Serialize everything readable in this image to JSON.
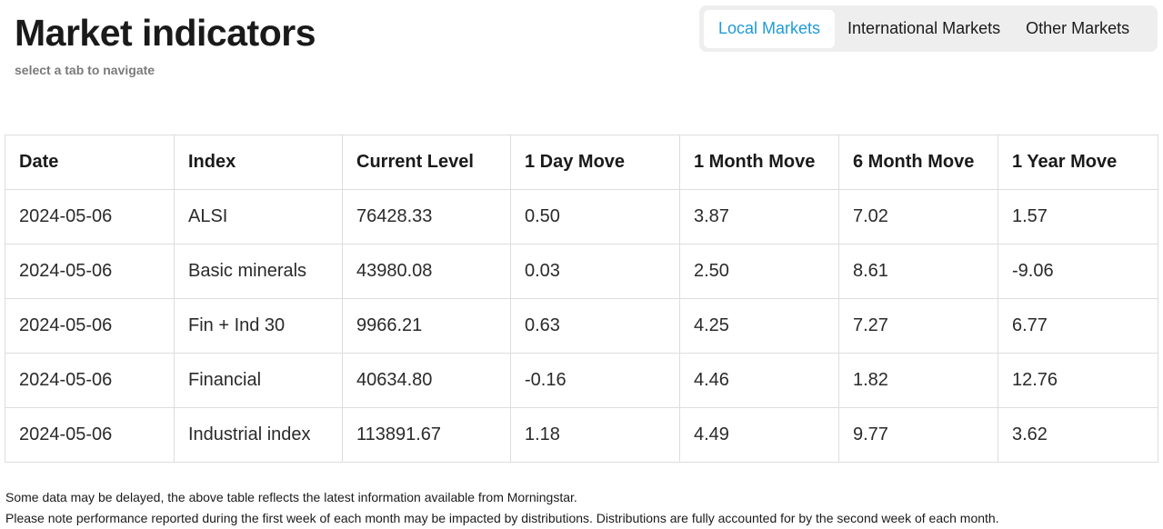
{
  "header": {
    "title": "Market indicators",
    "subtitle": "select a tab to navigate"
  },
  "tabs": [
    {
      "label": "Local Markets",
      "active": true
    },
    {
      "label": "International Markets",
      "active": false
    },
    {
      "label": "Other Markets",
      "active": false
    }
  ],
  "colors": {
    "accent": "#1f9bd8",
    "tab_bar_bg": "#eeeeee",
    "subtitle": "#7a7a7a",
    "border": "#dddddd"
  },
  "table": {
    "columns": [
      "Date",
      "Index",
      "Current Level",
      "1 Day Move",
      "1 Month Move",
      "6 Month Move",
      "1 Year Move"
    ],
    "rows": [
      [
        "2024-05-06",
        "ALSI",
        "76428.33",
        "0.50",
        "3.87",
        "7.02",
        "1.57"
      ],
      [
        "2024-05-06",
        "Basic minerals",
        "43980.08",
        "0.03",
        "2.50",
        "8.61",
        "-9.06"
      ],
      [
        "2024-05-06",
        "Fin + Ind 30",
        "9966.21",
        "0.63",
        "4.25",
        "7.27",
        "6.77"
      ],
      [
        "2024-05-06",
        "Financial",
        "40634.80",
        "-0.16",
        "4.46",
        "1.82",
        "12.76"
      ],
      [
        "2024-05-06",
        "Industrial index",
        "113891.67",
        "1.18",
        "4.49",
        "9.77",
        "3.62"
      ]
    ]
  },
  "footnotes": {
    "line1": "Some data may be delayed, the above table reflects the latest information available from Morningstar.",
    "line2": "Please note performance reported during the first week of each month may be impacted by distributions. Distributions are fully accounted for by the second week of each month."
  }
}
